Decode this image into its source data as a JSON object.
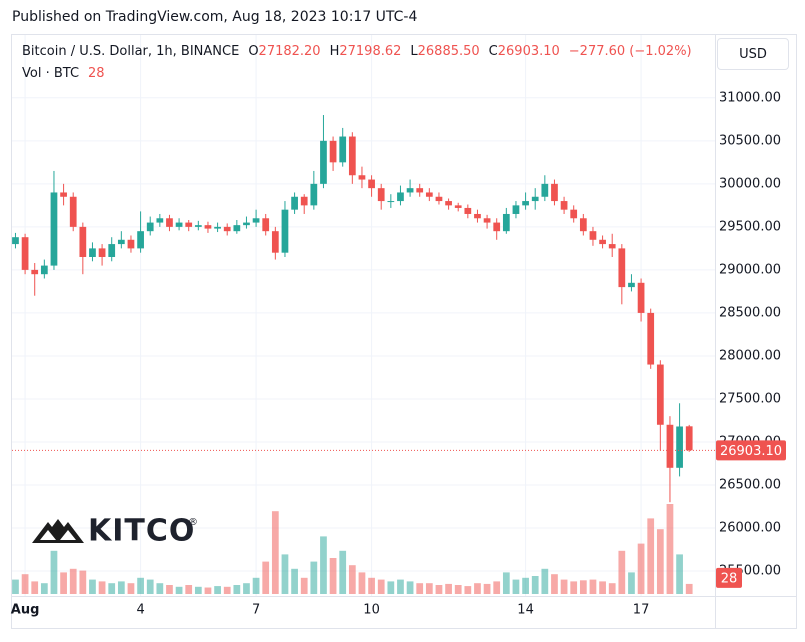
{
  "header": {
    "published": "Published on TradingView.com, Aug 18, 2023 10:17 UTC-4"
  },
  "chart_data": {
    "type": "candlestick",
    "symbol": "Bitcoin / U.S. Dollar, 1h, BINANCE",
    "ohlc_legend": [
      {
        "key": "O",
        "value": "27182.20"
      },
      {
        "key": "H",
        "value": "27198.62"
      },
      {
        "key": "L",
        "value": "26885.50"
      },
      {
        "key": "C",
        "value": "26903.10"
      }
    ],
    "change": "−277.60 (−1.02%)",
    "volume_title": "Vol · BTC",
    "currency": "USD",
    "watermark": "KITCO",
    "watermark_mark": "®",
    "x": [
      0.75,
      1,
      1.25,
      1.5,
      1.75,
      2,
      2.25,
      2.5,
      2.75,
      3,
      3.25,
      3.5,
      3.75,
      4,
      4.25,
      4.5,
      4.75,
      5,
      5.25,
      5.5,
      5.75,
      6,
      6.25,
      6.5,
      6.75,
      7,
      7.25,
      7.5,
      7.75,
      8,
      8.25,
      8.5,
      8.75,
      9,
      9.25,
      9.5,
      9.75,
      10,
      10.25,
      10.5,
      10.75,
      11,
      11.25,
      11.5,
      11.75,
      12,
      12.25,
      12.5,
      12.75,
      13,
      13.25,
      13.5,
      13.75,
      14,
      14.25,
      14.5,
      14.75,
      15,
      15.25,
      15.5,
      15.75,
      16,
      16.25,
      16.5,
      16.75,
      17,
      17.25,
      17.5,
      17.75,
      18,
      18.25
    ],
    "open": [
      29300,
      29380,
      29000,
      28950,
      29050,
      29900,
      29850,
      29500,
      29150,
      29250,
      29150,
      29300,
      29350,
      29250,
      29450,
      29550,
      29600,
      29500,
      29550,
      29500,
      29520,
      29480,
      29500,
      29450,
      29520,
      29550,
      29600,
      29450,
      29200,
      29700,
      29850,
      29750,
      30000,
      30500,
      30250,
      30550,
      30100,
      30050,
      29950,
      29800,
      29800,
      29900,
      29950,
      29900,
      29850,
      29800,
      29750,
      29720,
      29650,
      29600,
      29550,
      29450,
      29650,
      29750,
      29800,
      29850,
      30000,
      29800,
      29700,
      29600,
      29450,
      29350,
      29300,
      29250,
      28800,
      28850,
      28500,
      27900,
      27200,
      26700,
      27182.2
    ],
    "high": [
      29430,
      29420,
      29080,
      29120,
      30150,
      30000,
      29900,
      29550,
      29320,
      29300,
      29380,
      29450,
      29400,
      29680,
      29620,
      29650,
      29640,
      29600,
      29580,
      29570,
      29560,
      29550,
      29540,
      29580,
      29620,
      29700,
      29650,
      29500,
      29800,
      29900,
      29880,
      30150,
      30800,
      30550,
      30650,
      30600,
      30200,
      30100,
      30000,
      29880,
      29980,
      30050,
      30000,
      29950,
      29900,
      29830,
      29780,
      29760,
      29700,
      29640,
      29600,
      29720,
      29800,
      29900,
      29950,
      30100,
      30050,
      29850,
      29750,
      29650,
      29500,
      29400,
      29420,
      29300,
      28950,
      28900,
      28550,
      27950,
      27300,
      27450,
      27198.62
    ],
    "low": [
      29250,
      28950,
      28700,
      28900,
      29000,
      29750,
      29450,
      28950,
      29100,
      29050,
      29100,
      29250,
      29200,
      29200,
      29400,
      29500,
      29450,
      29460,
      29450,
      29460,
      29430,
      29440,
      29400,
      29420,
      29480,
      29500,
      29400,
      29120,
      29150,
      29650,
      29650,
      29700,
      29950,
      30150,
      30200,
      30000,
      29950,
      29850,
      29700,
      29720,
      29750,
      29850,
      29850,
      29800,
      29760,
      29700,
      29680,
      29600,
      29550,
      29480,
      29350,
      29420,
      29600,
      29700,
      29700,
      29800,
      29750,
      29650,
      29550,
      29400,
      29280,
      29250,
      29150,
      28600,
      28750,
      28400,
      27850,
      26900,
      26300,
      26600,
      26885.5
    ],
    "close": [
      29380,
      29000,
      28950,
      29050,
      29900,
      29850,
      29500,
      29150,
      29250,
      29150,
      29300,
      29350,
      29250,
      29450,
      29550,
      29600,
      29500,
      29550,
      29500,
      29520,
      29480,
      29500,
      29450,
      29520,
      29550,
      29600,
      29450,
      29200,
      29700,
      29850,
      29750,
      30000,
      30500,
      30250,
      30550,
      30100,
      30050,
      29950,
      29800,
      29800,
      29900,
      29950,
      29900,
      29850,
      29800,
      29750,
      29720,
      29650,
      29600,
      29550,
      29450,
      29650,
      29750,
      29800,
      29850,
      30000,
      29800,
      29700,
      29600,
      29450,
      29350,
      29300,
      29250,
      28800,
      28850,
      28500,
      27900,
      27200,
      26700,
      27180,
      26903.1
    ],
    "volume": [
      40,
      55,
      35,
      30,
      120,
      60,
      70,
      65,
      40,
      35,
      30,
      35,
      30,
      45,
      40,
      30,
      25,
      20,
      25,
      20,
      18,
      22,
      20,
      25,
      30,
      45,
      90,
      230,
      110,
      70,
      45,
      90,
      160,
      100,
      120,
      80,
      60,
      45,
      40,
      35,
      40,
      35,
      30,
      30,
      25,
      28,
      25,
      22,
      30,
      28,
      35,
      60,
      40,
      45,
      50,
      70,
      55,
      40,
      35,
      38,
      40,
      35,
      30,
      120,
      60,
      140,
      210,
      180,
      250,
      110,
      28
    ],
    "up_color": "#26a69a",
    "down_color": "#ef5350",
    "last_price": {
      "value": 26903.1,
      "label": "26903.10"
    },
    "xlim": [
      0.66,
      18.92
    ],
    "xticks": [
      {
        "value": 1,
        "label": "Aug"
      },
      4,
      7,
      10,
      14,
      17
    ],
    "ylim": [
      25210,
      31730
    ],
    "yticks": [
      {
        "value": 25500,
        "label": "25500.00"
      },
      {
        "value": 26000,
        "label": "26000.00"
      },
      {
        "value": 26500,
        "label": "26500.00"
      },
      {
        "value": 27000,
        "label": "27000.00"
      },
      {
        "value": 27500,
        "label": "27500.00"
      },
      {
        "value": 28000,
        "label": "28000.00"
      },
      {
        "value": 28500,
        "label": "28500.00"
      },
      {
        "value": 29000,
        "label": "29000.00"
      },
      {
        "value": 29500,
        "label": "29500.00"
      },
      {
        "value": 30000,
        "label": "30000.00"
      },
      {
        "value": 30500,
        "label": "30500.00"
      },
      {
        "value": 31000,
        "label": "31000.00"
      }
    ],
    "grid": true
  }
}
